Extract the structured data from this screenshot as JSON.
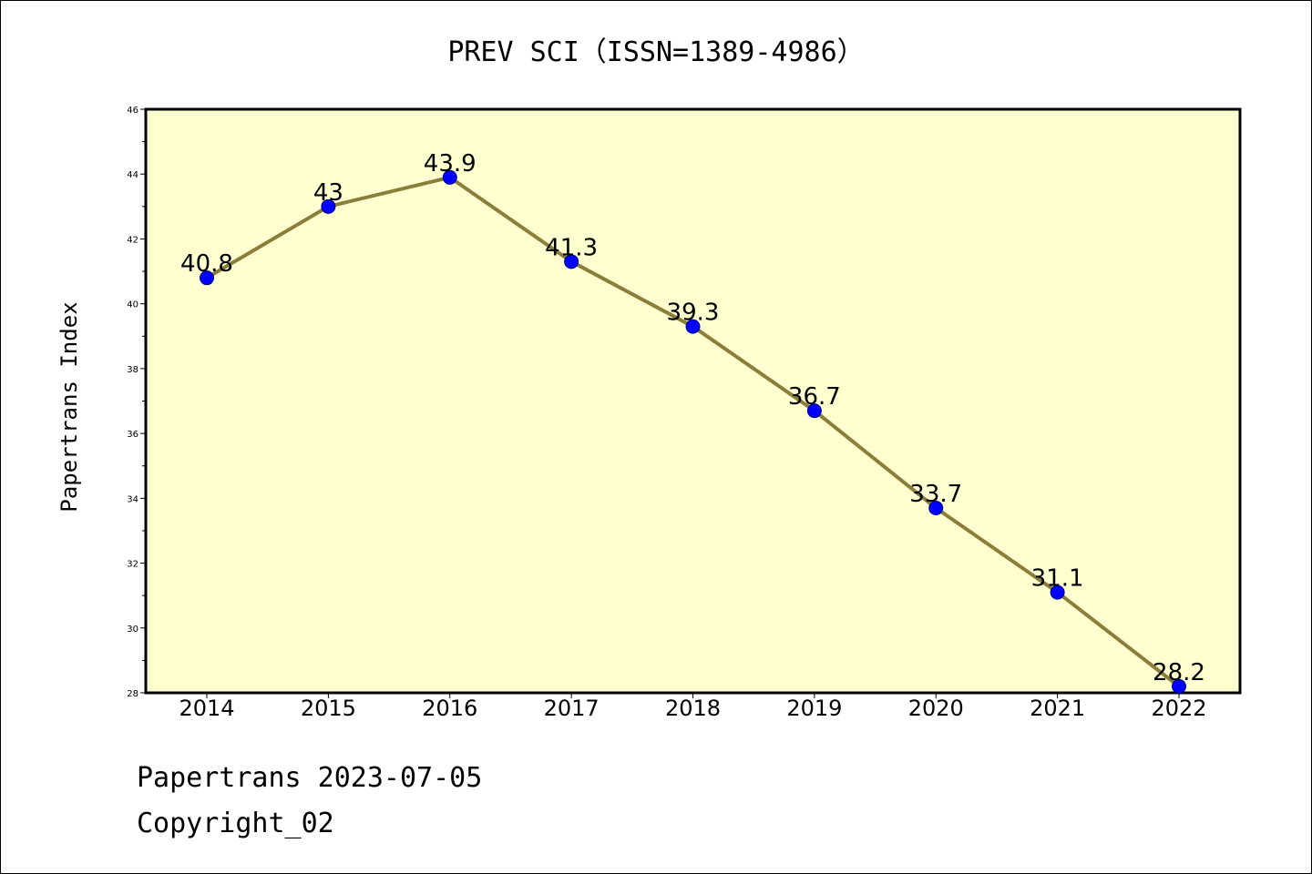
{
  "chart_data": {
    "type": "line",
    "title": "PREV SCI（ISSN=1389-4986）",
    "xlabel": "",
    "ylabel": "Papertrans Index",
    "categories": [
      "2014",
      "2015",
      "2016",
      "2017",
      "2018",
      "2019",
      "2020",
      "2021",
      "2022"
    ],
    "series": [
      {
        "values": [
          40.8,
          43,
          43.9,
          41.3,
          39.3,
          36.7,
          33.7,
          31.1,
          28.2
        ]
      }
    ],
    "data_labels": [
      "40.8",
      "43",
      "43.9",
      "41.3",
      "39.3",
      "36.7",
      "33.7",
      "31.1",
      "28.2"
    ],
    "ylim": [
      28,
      46
    ],
    "yticks": [
      28,
      30,
      32,
      34,
      36,
      38,
      40,
      42,
      44,
      46
    ],
    "grid": false,
    "legend": "none",
    "colors": {
      "plot_background": "#FFFFD0",
      "line": "#8B7D3A",
      "marker": "#0000FF",
      "marker_edge": "#000080"
    }
  },
  "footer": {
    "date_line": "Papertrans 2023-07-05",
    "copyright_line": "Copyright_02"
  }
}
